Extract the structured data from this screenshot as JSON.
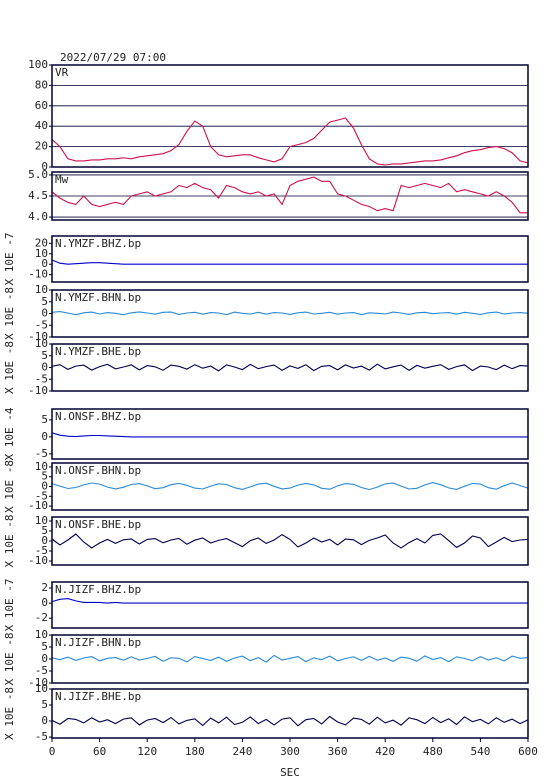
{
  "chart_data": {
    "type": "line",
    "title": "2022/07/29 07:00",
    "xlabel": "SEC",
    "x": [
      0,
      10,
      20,
      30,
      40,
      50,
      60,
      70,
      80,
      90,
      100,
      110,
      120,
      130,
      140,
      150,
      160,
      170,
      180,
      190,
      200,
      210,
      220,
      230,
      240,
      250,
      260,
      270,
      280,
      290,
      300,
      310,
      320,
      330,
      340,
      350,
      360,
      370,
      380,
      390,
      400,
      410,
      420,
      430,
      440,
      450,
      460,
      470,
      480,
      490,
      500,
      510,
      520,
      530,
      540,
      550,
      560,
      570,
      580,
      590,
      600
    ],
    "xlim": [
      0,
      600
    ],
    "xticks": [
      0,
      60,
      120,
      180,
      240,
      300,
      360,
      420,
      480,
      540,
      600
    ],
    "panels": [
      {
        "name": "VR",
        "color": "#d0104c",
        "grid": true,
        "ylim": [
          0,
          100
        ],
        "yticks": [
          0,
          20,
          40,
          60,
          80,
          100
        ],
        "values": [
          27,
          20,
          8,
          6,
          6,
          7,
          7,
          8,
          8,
          9,
          8,
          10,
          11,
          12,
          13,
          16,
          22,
          35,
          45,
          40,
          20,
          12,
          10,
          11,
          12,
          12,
          9,
          7,
          5,
          8,
          20,
          22,
          24,
          28,
          36,
          44,
          46,
          48,
          38,
          22,
          8,
          3,
          2,
          3,
          3,
          4,
          5,
          6,
          6,
          7,
          9,
          11,
          14,
          16,
          17,
          19,
          20,
          18,
          14,
          6,
          4
        ]
      },
      {
        "name": "Mw",
        "color": "#d0104c",
        "grid": true,
        "ylim": [
          3.93,
          5.07
        ],
        "yticks": [
          {
            "value": 4,
            "label": "4.0"
          },
          4.5,
          {
            "value": 5,
            "label": "5.0"
          }
        ],
        "values": [
          4.6,
          4.45,
          4.35,
          4.3,
          4.5,
          4.3,
          4.25,
          4.3,
          4.35,
          4.3,
          4.5,
          4.55,
          4.6,
          4.5,
          4.55,
          4.6,
          4.75,
          4.7,
          4.8,
          4.7,
          4.65,
          4.45,
          4.75,
          4.7,
          4.6,
          4.55,
          4.6,
          4.5,
          4.55,
          4.3,
          4.75,
          4.85,
          4.9,
          4.95,
          4.85,
          4.85,
          4.55,
          4.5,
          4.4,
          4.3,
          4.25,
          4.15,
          4.2,
          4.15,
          4.75,
          4.7,
          4.75,
          4.8,
          4.75,
          4.7,
          4.8,
          4.6,
          4.65,
          4.6,
          4.55,
          4.5,
          4.6,
          4.5,
          4.35,
          4.1,
          4.1
        ]
      },
      {
        "name": "N.YMZF.BHZ.bp",
        "scale": "X 10E -7",
        "color": "#0000cc",
        "grid": false,
        "ylim": [
          -17,
          27
        ],
        "yticks": [
          -10,
          0,
          10,
          20
        ],
        "values": [
          4,
          1,
          0,
          0.5,
          1,
          1.5,
          1.5,
          1,
          0.5,
          0,
          0,
          0,
          0,
          0,
          0,
          0,
          0,
          0,
          0,
          0,
          0,
          0,
          0,
          0,
          0,
          0,
          0,
          0,
          0,
          0,
          0,
          0,
          0,
          0,
          0,
          0,
          0,
          0,
          0,
          0,
          0,
          0,
          0,
          0,
          0,
          0,
          0,
          0,
          0,
          0,
          0,
          0,
          0,
          0,
          0,
          0,
          0,
          0,
          0,
          0,
          0
        ]
      },
      {
        "name": "N.YMZF.BHN.bp",
        "scale": "X 10E -8",
        "color": "#2a8ad8",
        "grid": false,
        "ylim": [
          -10,
          10
        ],
        "yticks": [
          -10,
          -5,
          0,
          5,
          10
        ],
        "values": [
          0.5,
          0.8,
          0.2,
          -0.5,
          0.3,
          0.6,
          -0.2,
          0.4,
          0.1,
          -0.5,
          0.3,
          0.7,
          0.2,
          -0.3,
          0.5,
          0.6,
          -0.4,
          0.2,
          0.5,
          -0.3,
          0.4,
          0.2,
          -0.5,
          0.6,
          0.1,
          -0.2,
          0.5,
          -0.3,
          0.4,
          0.2,
          -0.4,
          0.3,
          0.6,
          -0.2,
          0.1,
          0.5,
          -0.3,
          0.2,
          0.4,
          -0.5,
          0.3,
          0.1,
          -0.2,
          0.6,
          0.2,
          -0.4,
          0.3,
          0.5,
          -0.1,
          0.2,
          0.4,
          -0.3,
          0.5,
          0.1,
          -0.4,
          0.3,
          0.6,
          -0.2,
          0.2,
          0.4,
          0.1
        ]
      },
      {
        "name": "N.YMZF.BHE.bp",
        "scale": "X 10E -8",
        "color": "#000050",
        "grid": false,
        "ylim": [
          -10,
          10
        ],
        "yticks": [
          -10,
          -5,
          0,
          5,
          10
        ],
        "values": [
          0.5,
          1.2,
          -0.8,
          0.6,
          1.0,
          -1.1,
          0.4,
          1.3,
          -0.6,
          0.2,
          1.1,
          -1.0,
          0.8,
          0.3,
          -1.2,
          1.0,
          0.5,
          -0.7,
          1.2,
          -0.3,
          0.6,
          -1.4,
          1.1,
          0.2,
          -0.9,
          1.3,
          -0.5,
          0.4,
          1.0,
          -1.2,
          0.7,
          -0.4,
          1.2,
          -1.3,
          0.5,
          0.8,
          -1.0,
          1.1,
          -0.2,
          0.6,
          -1.1,
          1.4,
          -0.6,
          0.3,
          1.0,
          -1.2,
          0.9,
          -0.3,
          0.5,
          1.2,
          -0.8,
          0.4,
          1.1,
          -1.3,
          0.6,
          0.2,
          -0.9,
          1.0,
          -0.5,
          0.8,
          0.6
        ]
      },
      {
        "name": "N.ONSF.BHZ.bp",
        "scale": "X 10E -4",
        "color": "#0000cc",
        "grid": false,
        "ylim": [
          -6.5,
          8.2
        ],
        "yticks": [
          -5,
          0,
          5
        ],
        "values": [
          1.2,
          0.5,
          0.2,
          0.1,
          0.3,
          0.4,
          0.4,
          0.3,
          0.2,
          0.1,
          0,
          0,
          0,
          0,
          0,
          0,
          0,
          0,
          0,
          0,
          0,
          0,
          0,
          0,
          0,
          0,
          0,
          0,
          0,
          0,
          0,
          0,
          0,
          0,
          0,
          0,
          0,
          0,
          0,
          0,
          0,
          0,
          0,
          0,
          0,
          0,
          0,
          0,
          0,
          0,
          0,
          0,
          0,
          0,
          0,
          0,
          0,
          0,
          0,
          0,
          0
        ]
      },
      {
        "name": "N.ONSF.BHN.bp",
        "scale": "X 10E -8",
        "color": "#2a8ad8",
        "grid": false,
        "ylim": [
          -12,
          12
        ],
        "yticks": [
          -10,
          -5,
          0,
          5,
          10
        ],
        "values": [
          1.5,
          0.2,
          -1.0,
          -0.5,
          0.8,
          1.8,
          1.2,
          -0.3,
          -1.2,
          -0.4,
          1.0,
          1.5,
          0.3,
          -1.1,
          -0.6,
          0.9,
          1.6,
          0.6,
          -0.8,
          -1.3,
          0.2,
          1.4,
          1.0,
          -0.6,
          -1.5,
          -0.2,
          1.2,
          1.7,
          0.1,
          -1.2,
          -0.8,
          0.7,
          1.6,
          0.8,
          -0.9,
          -1.4,
          0.3,
          1.5,
          1.1,
          -0.5,
          -1.6,
          -0.3,
          1.3,
          1.8,
          0.2,
          -1.3,
          -0.9,
          0.8,
          2.0,
          0.9,
          -0.7,
          -1.5,
          0.1,
          1.6,
          1.2,
          -0.6,
          -1.4,
          0.4,
          1.8,
          0.5,
          -0.8
        ]
      },
      {
        "name": "N.ONSF.BHE.bp",
        "scale": "X 10E -8",
        "color": "#000050",
        "grid": false,
        "ylim": [
          -12,
          12
        ],
        "yticks": [
          -10,
          -5,
          0,
          5,
          10
        ],
        "values": [
          1.0,
          -2.0,
          0.5,
          3.5,
          -0.5,
          -3.5,
          -1.0,
          0.8,
          -1.2,
          0.6,
          1.0,
          -1.5,
          0.8,
          1.2,
          -0.9,
          0.5,
          1.3,
          -1.6,
          0.4,
          1.5,
          -1.0,
          0.3,
          1.2,
          -0.8,
          -2.8,
          0.2,
          1.5,
          -1.2,
          0.5,
          3.2,
          0.8,
          -3.0,
          -1.0,
          1.5,
          -0.5,
          0.8,
          -2.0,
          1.0,
          0.6,
          -1.8,
          0.3,
          1.5,
          3.0,
          -1.0,
          -3.5,
          -0.8,
          1.2,
          -1.0,
          2.8,
          3.5,
          0.2,
          -3.2,
          -1.0,
          2.5,
          1.5,
          -2.8,
          -0.5,
          1.8,
          -0.3,
          0.5,
          0.8
        ]
      },
      {
        "name": "N.JIZF.BHZ.bp",
        "scale": "X 10E -7",
        "color": "#0000cc",
        "grid": false,
        "ylim": [
          -3.3,
          2.8
        ],
        "yticks": [
          -2,
          0,
          2
        ],
        "values": [
          0.2,
          0.5,
          0.6,
          0.3,
          0.1,
          0.1,
          0.1,
          0,
          0.1,
          0,
          0,
          0,
          0,
          0,
          0,
          0,
          0,
          0,
          0,
          0,
          0,
          0,
          0,
          0,
          0,
          0,
          0,
          0,
          0,
          0,
          0,
          0,
          0,
          0,
          0,
          0,
          0,
          0,
          0,
          0,
          0,
          0,
          0,
          0,
          0,
          0,
          0,
          0,
          0,
          0,
          0,
          0,
          0,
          0,
          0,
          0,
          0,
          0,
          0,
          0,
          0
        ]
      },
      {
        "name": "N.JIZF.BHN.bp",
        "scale": "X 10E -8",
        "color": "#2a8ad8",
        "grid": false,
        "ylim": [
          -10,
          10
        ],
        "yticks": [
          -10,
          -5,
          0,
          5,
          10
        ],
        "values": [
          0.5,
          -0.3,
          0.8,
          -0.6,
          0.4,
          1.0,
          -0.8,
          0.3,
          0.6,
          -0.5,
          0.9,
          -0.4,
          0.2,
          1.1,
          -0.9,
          0.5,
          0.3,
          -1.2,
          1.0,
          0.2,
          -0.6,
          0.8,
          -1.0,
          0.4,
          1.2,
          -0.7,
          0.6,
          -1.3,
          1.5,
          -0.4,
          0.3,
          1.0,
          -1.1,
          0.5,
          -0.3,
          1.2,
          -0.8,
          0.2,
          0.9,
          -0.6,
          1.1,
          -0.5,
          0.4,
          -1.0,
          0.8,
          0.3,
          -0.9,
          1.3,
          -0.2,
          0.6,
          -1.1,
          0.9,
          0.2,
          -0.7,
          1.0,
          -0.4,
          0.5,
          -0.8,
          1.2,
          0.3,
          0.6
        ]
      },
      {
        "name": "N.JIZF.BHE.bp",
        "scale": "X 10E -8",
        "color": "#000050",
        "grid": false,
        "ylim": [
          -5.3,
          10
        ],
        "yticks": [
          -5,
          0,
          5,
          10
        ],
        "values": [
          0.2,
          -1.0,
          0.8,
          0.5,
          -0.6,
          1.0,
          -0.3,
          0.4,
          -0.8,
          0.6,
          1.0,
          -1.2,
          0.3,
          0.8,
          -0.5,
          1.1,
          -0.9,
          0.2,
          0.7,
          -1.4,
          0.9,
          -0.6,
          1.2,
          -1.1,
          -0.4,
          1.3,
          -0.8,
          0.5,
          -1.2,
          0.6,
          1.0,
          -1.5,
          0.4,
          0.8,
          -0.9,
          1.4,
          -0.3,
          -1.2,
          0.9,
          0.5,
          -1.0,
          1.2,
          -0.6,
          0.3,
          -1.3,
          1.0,
          0.4,
          -0.8,
          1.1,
          -0.5,
          0.7,
          -1.1,
          1.3,
          -0.2,
          0.5,
          -0.9,
          1.0,
          -0.4,
          0.6,
          -0.8,
          0.4
        ]
      }
    ]
  }
}
